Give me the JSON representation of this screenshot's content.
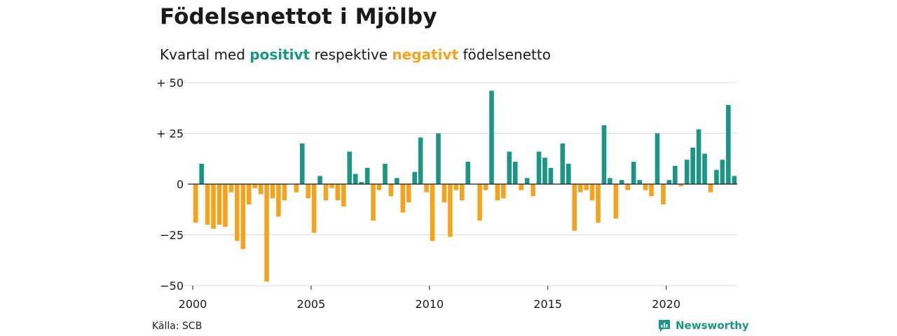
{
  "title": "Födelsenettot i Mjölby",
  "subtitle": {
    "prefix": "Kvartal med ",
    "positive_word": "positivt",
    "middle": " respektive ",
    "negative_word": "negativt",
    "suffix": " födelsenetto"
  },
  "source": "Källa: SCB",
  "brand": {
    "name": "Newsworthy",
    "icon": "newsworthy-logo-icon"
  },
  "colors": {
    "positive": "#1a9586",
    "negative": "#f5a31f",
    "grid": "#dddddd",
    "text": "#1a1a1a"
  },
  "chart_data": {
    "type": "bar",
    "x_start": 2000,
    "interval": "quarter",
    "ylim": [
      -50,
      50
    ],
    "y_ticks": [
      {
        "value": 50,
        "label": "+ 50"
      },
      {
        "value": 25,
        "label": "+ 25"
      },
      {
        "value": 0,
        "label": "0"
      },
      {
        "value": -25,
        "label": "−25"
      },
      {
        "value": -50,
        "label": "−50"
      }
    ],
    "x_ticks": [
      {
        "value": 2000,
        "label": "2000"
      },
      {
        "value": 2005,
        "label": "2005"
      },
      {
        "value": 2010,
        "label": "2010"
      },
      {
        "value": 2015,
        "label": "2015"
      },
      {
        "value": 2020,
        "label": "2020"
      }
    ],
    "values": [
      -19,
      10,
      -20,
      -22,
      -20,
      -21,
      -4,
      -28,
      -32,
      -10,
      -2,
      -5,
      -48,
      -7,
      -16,
      -8,
      0,
      -4,
      20,
      -7,
      -24,
      4,
      -8,
      -2,
      -8,
      -11,
      16,
      5,
      1,
      8,
      -18,
      -3,
      10,
      -6,
      3,
      -14,
      -9,
      6,
      23,
      -4,
      -28,
      25,
      -9,
      -26,
      -3,
      -8,
      11,
      0,
      -18,
      -3,
      46,
      -8,
      -7,
      16,
      11,
      -3,
      3,
      -6,
      16,
      13,
      8,
      0,
      20,
      10,
      -23,
      -4,
      -3,
      -8,
      -19,
      29,
      3,
      -17,
      2,
      -3,
      11,
      2,
      -3,
      -6,
      25,
      -10,
      2,
      9,
      -1,
      12,
      18,
      27,
      15,
      -4,
      7,
      12,
      39,
      4
    ],
    "grid": true,
    "legend": "none"
  }
}
